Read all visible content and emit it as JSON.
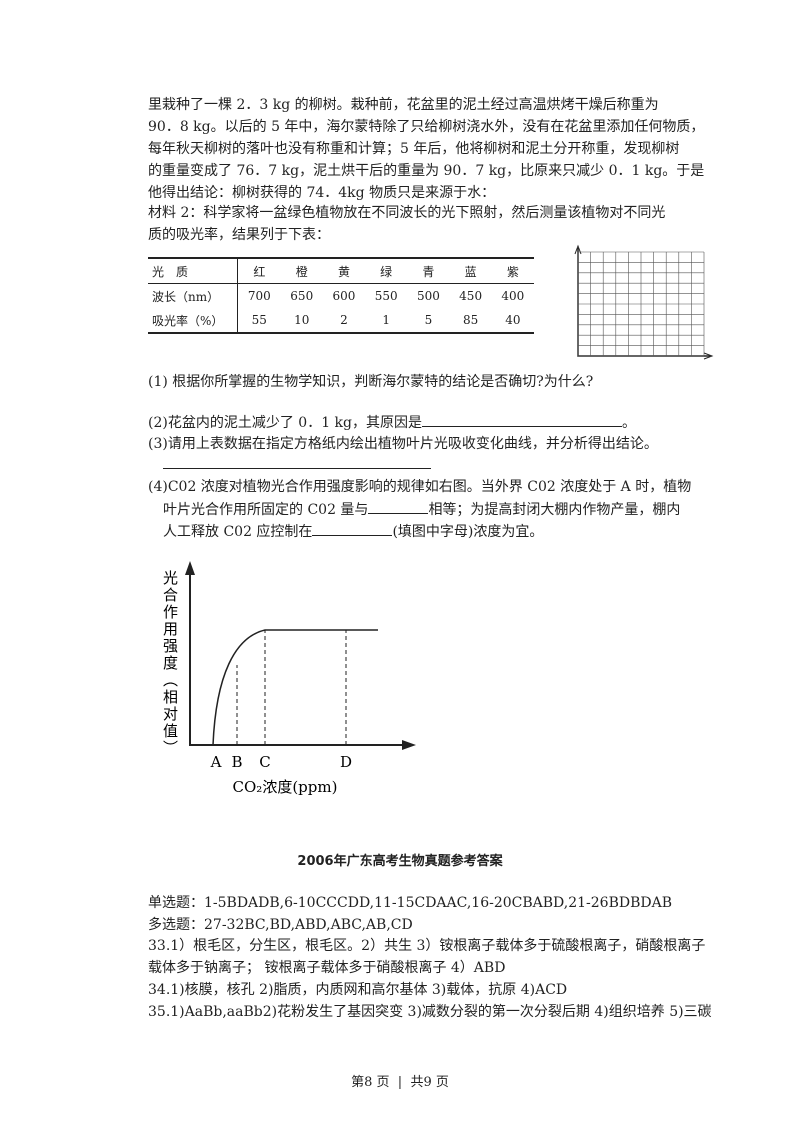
{
  "material1_lines": [
    "里栽种了一棵 2．3 kg 的柳树。栽种前，花盆里的泥土经过高温烘烤干燥后称重为",
    "90．8 kg。以后的 5 年中，海尔蒙特除了只给柳树浇水外，没有在花盆里添加任何物质，",
    "每年秋天柳树的落叶也没有称重和计算；5 年后，他将柳树和泥土分开称重，发现柳树",
    "的重量变成了 76．7 kg，泥土烘干后的重量为 90．7 kg，比原来只减少 0．1 kg。于是",
    "他得出结论：柳树获得的 74．4kg 物质只是来源于水："
  ],
  "material2_lines": [
    "材料 2：科学家将一盆绿色植物放在不同波长的光下照射，然后测量该植物对不同光",
    "质的吸光率，结果列于下表："
  ],
  "table": {
    "rows": [
      [
        "光　质",
        "红",
        "橙",
        "黄",
        "绿",
        "青",
        "蓝",
        "紫"
      ],
      [
        "波长（nm）",
        "700",
        "650",
        "600",
        "550",
        "500",
        "450",
        "400"
      ],
      [
        "吸光率（%）",
        "55",
        "10",
        "2",
        "1",
        "5",
        "85",
        "40"
      ]
    ]
  },
  "questions": {
    "q1": "(1) 根据你所掌握的生物学知识，判断海尔蒙特的结论是否确切?为什么?",
    "q2": [
      "(2)花盆内的泥土减少了 0．1 kg，其原因是",
      "。"
    ],
    "q3": "(3)请用上表数据在指定方格纸内绘出植物叶片光吸收变化曲线，并分析得出结论。",
    "q4": [
      "(4)C02 浓度对植物光合作用强度影响的规律如右图。当外界 C02 浓度处于 A 时，植物",
      "叶片光合作用所固定的 C02 量与",
      "相等；为提高封闭大棚内作物产量，棚内",
      "人工释放 C02 应控制在",
      "(填图中字母)浓度为宜。"
    ]
  },
  "figure": {
    "y_label": "光合作用强度（相对值）",
    "x_label": "CO₂浓度(ppm)",
    "points": [
      "A",
      "B",
      "C",
      "D"
    ]
  },
  "answers": {
    "title": "2006年广东高考生物真题参考答案",
    "lines": [
      "单选题：1-5BDADB,6-10CCCDD,11-15CDAAC,16-20CBABD,21-26BDBDAB",
      "多选题：27-32BC,BD,ABD,ABC,AB,CD",
      "33.1）根毛区，分生区，根毛区。2）共生 3）铵根离子载体多于硫酸根离子，硝酸根离子",
      "载体多于钠离子； 铵根离子载体多于硝酸根离子 4）ABD",
      "34.1)核膜，核孔 2)脂质，内质网和高尔基体 3)载体，抗原 4)ACD",
      "35.1)AaBb,aaBb2)花粉发生了基因突变 3)减数分裂的第一次分裂后期 4)组织培养 5)三碳"
    ]
  },
  "footer": {
    "page": "第8 页",
    "total": "共9 页"
  }
}
